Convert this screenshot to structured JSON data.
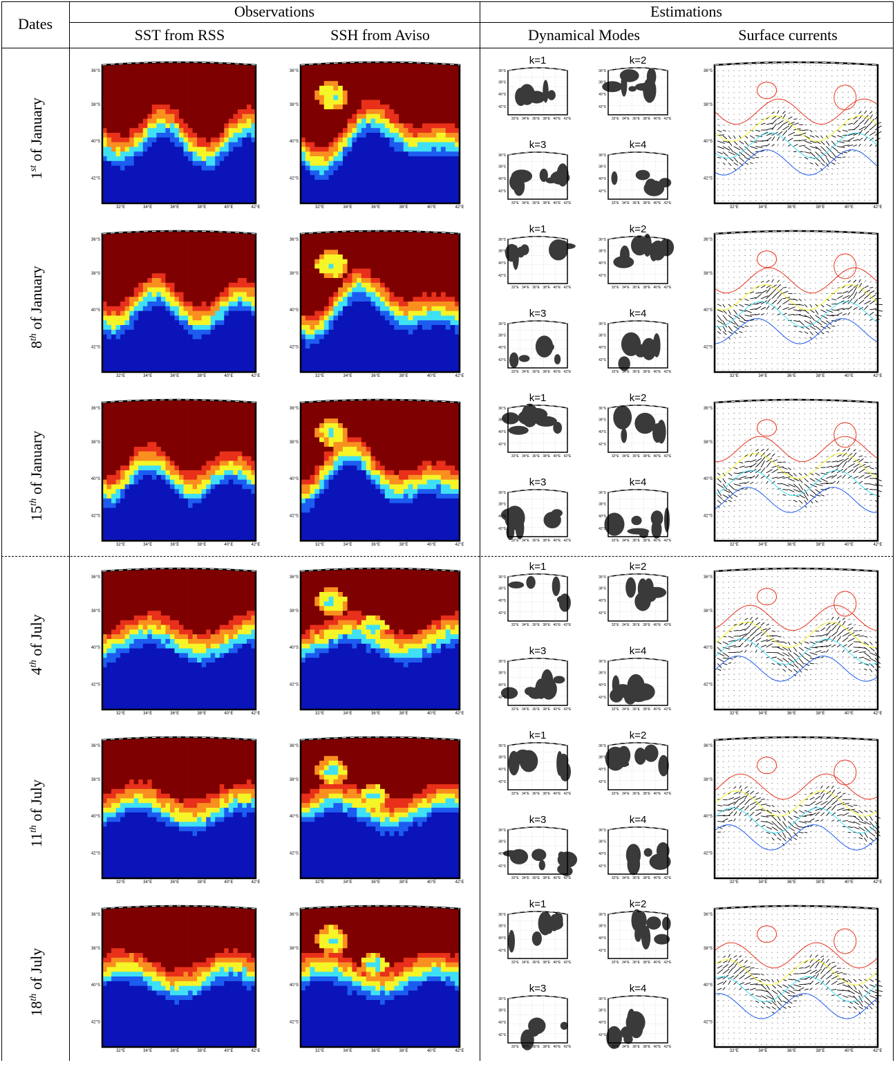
{
  "header": {
    "dates": "Dates",
    "observations": "Observations",
    "estimations": "Estimations",
    "sst": "SST from RSS",
    "ssh": "SSH from Aviso",
    "modes": "Dynamical Modes",
    "currents": "Surface currents"
  },
  "rows": [
    {
      "num": "1",
      "sup": "st",
      "rest": " of January"
    },
    {
      "num": "8",
      "sup": "th",
      "rest": " of January"
    },
    {
      "num": "15",
      "sup": "th",
      "rest": " of January"
    },
    {
      "num": "4",
      "sup": "th",
      "rest": " of July"
    },
    {
      "num": "11",
      "sup": "th",
      "rest": " of July"
    },
    {
      "num": "18",
      "sup": "th",
      "rest": " of July"
    }
  ],
  "mode_labels": [
    "k=1",
    "k=2",
    "k=3",
    "k=4"
  ],
  "lat_ticks": [
    "36°S",
    "38°S",
    "40°S",
    "42°S"
  ],
  "lon_ticks": [
    "32°E",
    "34°E",
    "36°E",
    "38°E",
    "40°E",
    "42°E"
  ],
  "colors": {
    "jet_dark_red": "#7f0000",
    "jet_red": "#e8301a",
    "jet_orange": "#f98f1f",
    "jet_yellow": "#f5f527",
    "jet_cyan": "#3fe0f5",
    "jet_blue": "#1d5cf0",
    "jet_dark_blue": "#0a14b8",
    "mode_fill": "#3a3a3a"
  }
}
